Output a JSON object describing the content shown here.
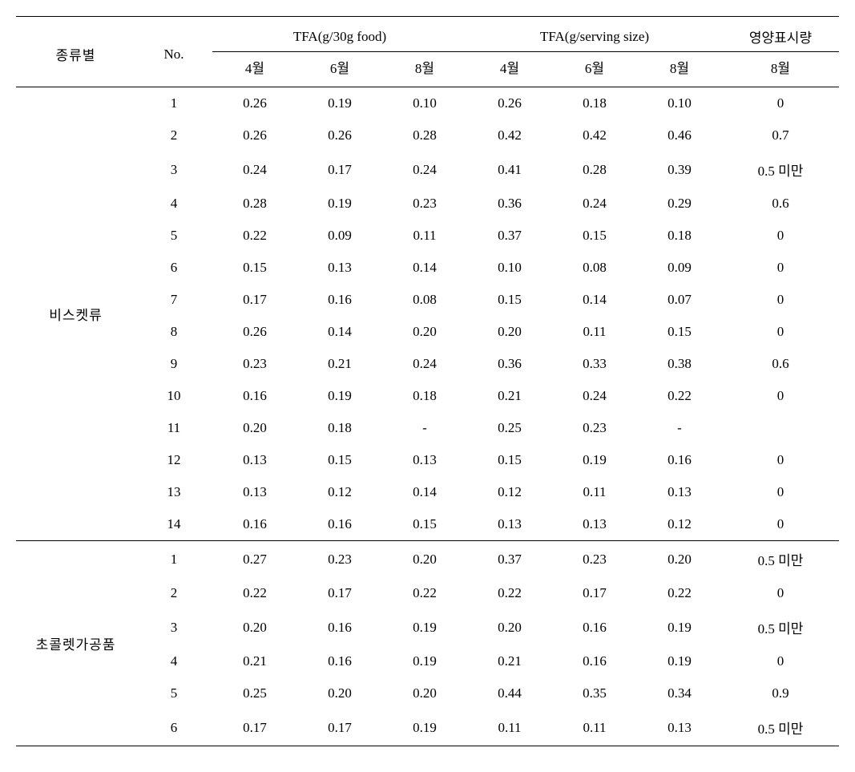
{
  "headers": {
    "category": "종류별",
    "no": "No.",
    "tfa_30g": "TFA(g/30g food)",
    "tfa_serving": "TFA(g/serving size)",
    "nutrition_label": "영양표시량",
    "month_4": "4월",
    "month_6": "6월",
    "month_8": "8월"
  },
  "groups": [
    {
      "name": "비스켓류",
      "rows": [
        {
          "no": "1",
          "t30_4": "0.26",
          "t30_6": "0.19",
          "t30_8": "0.10",
          "ts_4": "0.26",
          "ts_6": "0.18",
          "ts_8": "0.10",
          "label": "0"
        },
        {
          "no": "2",
          "t30_4": "0.26",
          "t30_6": "0.26",
          "t30_8": "0.28",
          "ts_4": "0.42",
          "ts_6": "0.42",
          "ts_8": "0.46",
          "label": "0.7"
        },
        {
          "no": "3",
          "t30_4": "0.24",
          "t30_6": "0.17",
          "t30_8": "0.24",
          "ts_4": "0.41",
          "ts_6": "0.28",
          "ts_8": "0.39",
          "label": "0.5 미만"
        },
        {
          "no": "4",
          "t30_4": "0.28",
          "t30_6": "0.19",
          "t30_8": "0.23",
          "ts_4": "0.36",
          "ts_6": "0.24",
          "ts_8": "0.29",
          "label": "0.6"
        },
        {
          "no": "5",
          "t30_4": "0.22",
          "t30_6": "0.09",
          "t30_8": "0.11",
          "ts_4": "0.37",
          "ts_6": "0.15",
          "ts_8": "0.18",
          "label": "0"
        },
        {
          "no": "6",
          "t30_4": "0.15",
          "t30_6": "0.13",
          "t30_8": "0.14",
          "ts_4": "0.10",
          "ts_6": "0.08",
          "ts_8": "0.09",
          "label": "0"
        },
        {
          "no": "7",
          "t30_4": "0.17",
          "t30_6": "0.16",
          "t30_8": "0.08",
          "ts_4": "0.15",
          "ts_6": "0.14",
          "ts_8": "0.07",
          "label": "0"
        },
        {
          "no": "8",
          "t30_4": "0.26",
          "t30_6": "0.14",
          "t30_8": "0.20",
          "ts_4": "0.20",
          "ts_6": "0.11",
          "ts_8": "0.15",
          "label": "0"
        },
        {
          "no": "9",
          "t30_4": "0.23",
          "t30_6": "0.21",
          "t30_8": "0.24",
          "ts_4": "0.36",
          "ts_6": "0.33",
          "ts_8": "0.38",
          "label": "0.6"
        },
        {
          "no": "10",
          "t30_4": "0.16",
          "t30_6": "0.19",
          "t30_8": "0.18",
          "ts_4": "0.21",
          "ts_6": "0.24",
          "ts_8": "0.22",
          "label": "0"
        },
        {
          "no": "11",
          "t30_4": "0.20",
          "t30_6": "0.18",
          "t30_8": "-",
          "ts_4": "0.25",
          "ts_6": "0.23",
          "ts_8": "-",
          "label": ""
        },
        {
          "no": "12",
          "t30_4": "0.13",
          "t30_6": "0.15",
          "t30_8": "0.13",
          "ts_4": "0.15",
          "ts_6": "0.19",
          "ts_8": "0.16",
          "label": "0"
        },
        {
          "no": "13",
          "t30_4": "0.13",
          "t30_6": "0.12",
          "t30_8": "0.14",
          "ts_4": "0.12",
          "ts_6": "0.11",
          "ts_8": "0.13",
          "label": "0"
        },
        {
          "no": "14",
          "t30_4": "0.16",
          "t30_6": "0.16",
          "t30_8": "0.15",
          "ts_4": "0.13",
          "ts_6": "0.13",
          "ts_8": "0.12",
          "label": "0"
        }
      ]
    },
    {
      "name": "초콜렛가공품",
      "rows": [
        {
          "no": "1",
          "t30_4": "0.27",
          "t30_6": "0.23",
          "t30_8": "0.20",
          "ts_4": "0.37",
          "ts_6": "0.23",
          "ts_8": "0.20",
          "label": "0.5 미만"
        },
        {
          "no": "2",
          "t30_4": "0.22",
          "t30_6": "0.17",
          "t30_8": "0.22",
          "ts_4": "0.22",
          "ts_6": "0.17",
          "ts_8": "0.22",
          "label": "0"
        },
        {
          "no": "3",
          "t30_4": "0.20",
          "t30_6": "0.16",
          "t30_8": "0.19",
          "ts_4": "0.20",
          "ts_6": "0.16",
          "ts_8": "0.19",
          "label": "0.5 미만"
        },
        {
          "no": "4",
          "t30_4": "0.21",
          "t30_6": "0.16",
          "t30_8": "0.19",
          "ts_4": "0.21",
          "ts_6": "0.16",
          "ts_8": "0.19",
          "label": "0"
        },
        {
          "no": "5",
          "t30_4": "0.25",
          "t30_6": "0.20",
          "t30_8": "0.20",
          "ts_4": "0.44",
          "ts_6": "0.35",
          "ts_8": "0.34",
          "label": "0.9"
        },
        {
          "no": "6",
          "t30_4": "0.17",
          "t30_6": "0.17",
          "t30_8": "0.19",
          "ts_4": "0.11",
          "ts_6": "0.11",
          "ts_8": "0.13",
          "label": "0.5 미만"
        }
      ]
    }
  ]
}
